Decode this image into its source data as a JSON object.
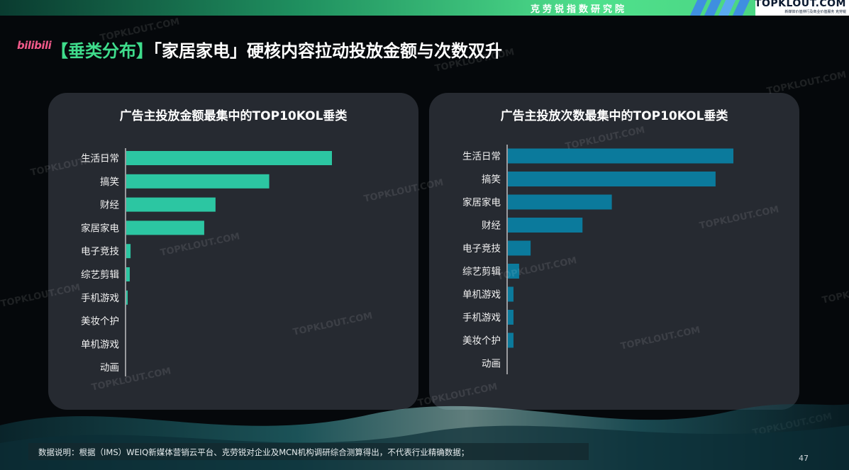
{
  "header": {
    "institute": "克劳锐指数研究院",
    "brand": "TOPKLOUT.COM",
    "brand_sub": "新媒体价值排行及商业价值服务 克劳锐"
  },
  "logo_text": "bilibili",
  "title": {
    "highlight": "【垂类分布】",
    "main": "「家居家电」硬核内容拉动投放金额与次数双升"
  },
  "watermark": "TOPKLOUT.COM",
  "colors": {
    "left_bar": "#2cc6a2",
    "right_bar": "#0b7a9c",
    "accent": "#3fdc8c"
  },
  "chart_data": [
    {
      "type": "bar",
      "orientation": "horizontal",
      "title": "广告主投放金额最集中的TOP10KOL垂类",
      "categories": [
        "生活日常",
        "搞笑",
        "财经",
        "家居家电",
        "电子竞技",
        "综艺剪辑",
        "手机游戏",
        "美妆个护",
        "单机游戏",
        "动画"
      ],
      "values": [
        100,
        69.5,
        43.4,
        37.9,
        2.1,
        1.7,
        0.7,
        0,
        0,
        0
      ],
      "xlim": [
        0,
        100
      ],
      "grid": false,
      "legend": "none"
    },
    {
      "type": "bar",
      "orientation": "horizontal",
      "title": "广告主投放次数最集中的TOP10KOL垂类",
      "categories": [
        "生活日常",
        "搞笑",
        "家居家电",
        "财经",
        "电子竞技",
        "综艺剪辑",
        "单机游戏",
        "手机游戏",
        "美妆个护",
        "动画"
      ],
      "values": [
        100,
        92.1,
        46.1,
        33.1,
        10.1,
        5.0,
        2.5,
        2.5,
        2.5,
        0
      ],
      "xlim": [
        0,
        100
      ],
      "grid": false,
      "legend": "none"
    }
  ],
  "footnote": "数据说明：根据（IMS）WEIQ新媒体营销云平台、克劳锐对企业及MCN机构调研综合测算得出，不代表行业精确数据；",
  "page_number": "47"
}
